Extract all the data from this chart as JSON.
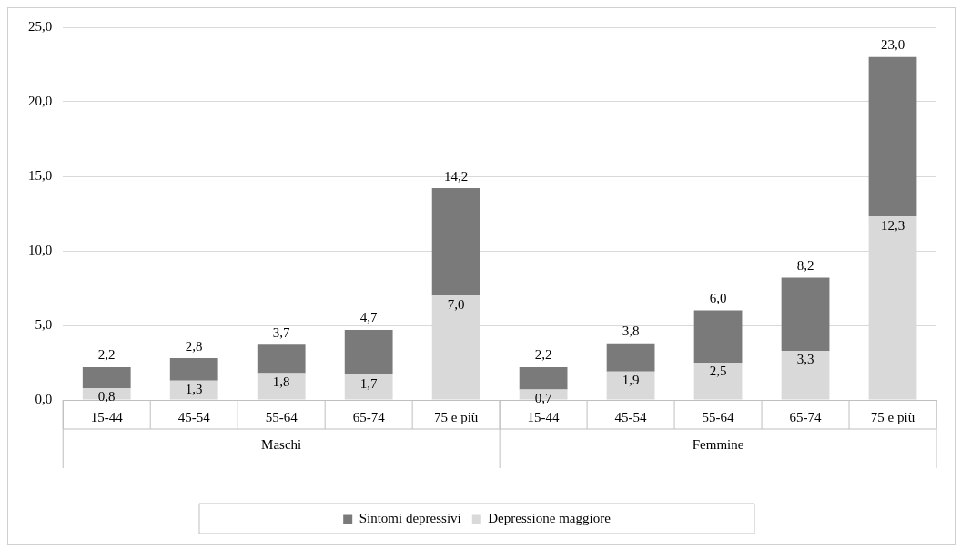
{
  "chart_data": {
    "type": "bar",
    "stacked": true,
    "categories": [
      "15-44",
      "45-54",
      "55-64",
      "65-74",
      "75 e più",
      "15-44",
      "45-54",
      "55-64",
      "65-74",
      "75 e più"
    ],
    "series": [
      {
        "name": "Depressione maggiore",
        "color": "#d9d9d9",
        "values": [
          0.8,
          1.3,
          1.8,
          1.7,
          7.0,
          0.7,
          1.9,
          2.5,
          3.3,
          12.3
        ],
        "value_labels": [
          "0,8",
          "1,3",
          "1,8",
          "1,7",
          "7,0",
          "0,7",
          "1,9",
          "2,5",
          "3,3",
          "12,3"
        ]
      },
      {
        "name": "Sintomi depressivi",
        "color": "#7a7a7a",
        "values": [
          1.4,
          1.5,
          1.9,
          3.0,
          7.2,
          1.5,
          1.9,
          3.5,
          4.9,
          10.7
        ]
      }
    ],
    "totals": [
      "2,2",
      "2,8",
      "3,7",
      "4,7",
      "14,2",
      "2,2",
      "3,8",
      "6,0",
      "8,2",
      "23,0"
    ],
    "annotations": [
      "Maschi",
      "Femmine"
    ],
    "ylim": [
      0,
      25
    ],
    "yticks": [
      {
        "value": 0,
        "label": "0,0"
      },
      {
        "value": 5,
        "label": "5,0"
      },
      {
        "value": 10,
        "label": "10,0"
      },
      {
        "value": 15,
        "label": "15,0"
      },
      {
        "value": 20,
        "label": "20,0"
      },
      {
        "value": 25,
        "label": "25,0"
      }
    ],
    "grid": "y",
    "legend": "bottom"
  }
}
